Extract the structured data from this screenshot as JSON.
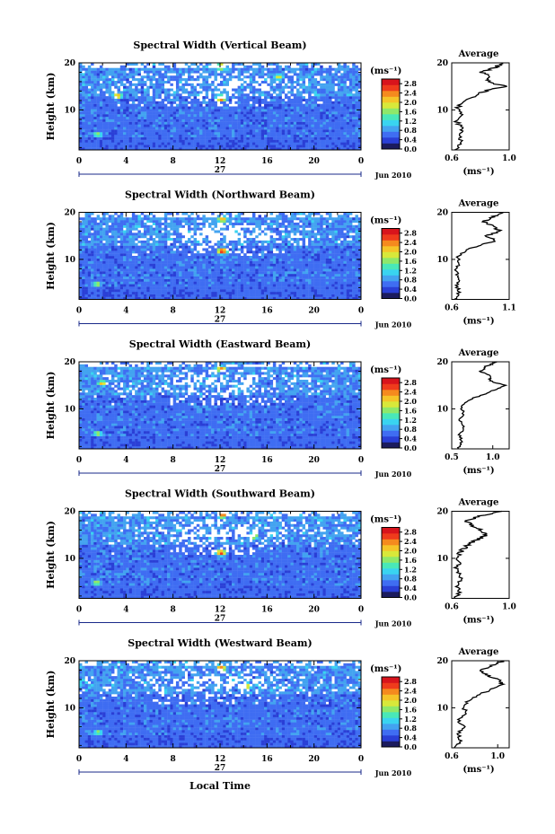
{
  "panels": [
    {
      "title": "Spectral Width (Vertical Beam)",
      "average_title": "Average",
      "ylabel": "Height (km)",
      "y_ticks": [
        "20",
        "10"
      ],
      "x_ticks": [
        "0",
        "4",
        "8",
        "12",
        "16",
        "20",
        "0"
      ],
      "day_label": "27",
      "month_label": "Jun 2010",
      "colorbar_unit": "(ms⁻¹)",
      "colorbar_ticks": [
        "2.8",
        "2.4",
        "2.0",
        "1.6",
        "1.2",
        "0.8",
        "0.4",
        "0.0"
      ],
      "avg_x_ticks": [
        "0.6",
        "1.0"
      ],
      "avg_xlabel": "(ms⁻¹)",
      "avg_y_ticks": [
        "20",
        "10"
      ]
    },
    {
      "title": "Spectral Width (Northward Beam)",
      "average_title": "Average",
      "ylabel": "Height (km)",
      "y_ticks": [
        "20",
        "10"
      ],
      "x_ticks": [
        "0",
        "4",
        "8",
        "12",
        "16",
        "20",
        "0"
      ],
      "day_label": "27",
      "month_label": "Jun 2010",
      "colorbar_unit": "(ms⁻¹)",
      "colorbar_ticks": [
        "2.8",
        "2.4",
        "2.0",
        "1.6",
        "1.2",
        "0.8",
        "0.4",
        "0.0"
      ],
      "avg_x_ticks": [
        "0.6",
        "1.1"
      ],
      "avg_xlabel": "(ms⁻¹)",
      "avg_y_ticks": [
        "20",
        "10"
      ]
    },
    {
      "title": "Spectral Width (Eastward Beam)",
      "average_title": "Average",
      "ylabel": "Height (km)",
      "y_ticks": [
        "20",
        "10"
      ],
      "x_ticks": [
        "0",
        "4",
        "8",
        "12",
        "16",
        "20",
        "0"
      ],
      "day_label": "27",
      "month_label": "Jun 2010",
      "colorbar_unit": "(ms⁻¹)",
      "colorbar_ticks": [
        "2.8",
        "2.4",
        "2.0",
        "1.6",
        "1.2",
        "0.8",
        "0.4",
        "0.0"
      ],
      "avg_x_ticks": [
        "0.5",
        "1.0"
      ],
      "avg_xlabel": "(ms⁻¹)",
      "avg_y_ticks": [
        "20",
        "10"
      ]
    },
    {
      "title": "Spectral Width (Southward Beam)",
      "average_title": "Average",
      "ylabel": "Height (km)",
      "y_ticks": [
        "20",
        "10"
      ],
      "x_ticks": [
        "0",
        "4",
        "8",
        "12",
        "16",
        "20",
        "0"
      ],
      "day_label": "27",
      "month_label": "Jun 2010",
      "colorbar_unit": "(ms⁻¹)",
      "colorbar_ticks": [
        "2.8",
        "2.4",
        "2.0",
        "1.6",
        "1.2",
        "0.8",
        "0.4",
        "0.0"
      ],
      "avg_x_ticks": [
        "0.6",
        "1.0"
      ],
      "avg_xlabel": "(ms⁻¹)",
      "avg_y_ticks": [
        "20",
        "10"
      ]
    },
    {
      "title": "Spectral Width (Westward Beam)",
      "average_title": "Average",
      "ylabel": "Height (km)",
      "y_ticks": [
        "20",
        "10"
      ],
      "x_ticks": [
        "0",
        "4",
        "8",
        "12",
        "16",
        "20",
        "0"
      ],
      "day_label": "27",
      "month_label": "Jun 2010",
      "colorbar_unit": "(ms⁻¹)",
      "colorbar_ticks": [
        "2.8",
        "2.4",
        "2.0",
        "1.6",
        "1.2",
        "0.8",
        "0.4",
        "0.0"
      ],
      "avg_x_ticks": [
        "0.6",
        "1.0"
      ],
      "avg_xlabel": "(ms⁻¹)",
      "avg_y_ticks": [
        "20",
        "10"
      ]
    }
  ],
  "xlabel_bottom": "Local Time",
  "colormap": [
    "#1b1b5e",
    "#2a3fd6",
    "#3f6df2",
    "#43a3f0",
    "#39d4f0",
    "#49e8b8",
    "#8ee86a",
    "#d8e83a",
    "#f5c428",
    "#f58a1e",
    "#ef3b1c",
    "#d8141c"
  ],
  "chart_data": [
    {
      "type": "heatmap",
      "title": "Spectral Width (Vertical Beam)",
      "ylabel": "Height (km)",
      "xlabel": "Local Time",
      "xlim": [
        0,
        24
      ],
      "ylim": [
        1.5,
        20
      ],
      "clim": [
        0.0,
        3.0
      ],
      "colorbar_unit": "(ms⁻¹)",
      "hotspots": [
        {
          "x": 12.1,
          "y": 19.2,
          "value": 2.6
        },
        {
          "x": 12.1,
          "y": 12.5,
          "value": 2.8
        },
        {
          "x": 3.3,
          "y": 13.0,
          "value": 2.2
        },
        {
          "x": 1.6,
          "y": 4.8,
          "value": 1.6
        },
        {
          "x": 17.0,
          "y": 17.0,
          "value": 1.8
        }
      ],
      "average_profile": {
        "xlim": [
          0.6,
          1.0
        ],
        "height": [
          1.5,
          3,
          4.5,
          6,
          7.5,
          9,
          10.5,
          12,
          13,
          14,
          15,
          16,
          17,
          18,
          19,
          20
        ],
        "value": [
          0.62,
          0.67,
          0.65,
          0.68,
          0.63,
          0.66,
          0.64,
          0.7,
          0.76,
          0.83,
          0.97,
          0.84,
          0.88,
          0.81,
          0.9,
          0.95
        ]
      }
    },
    {
      "type": "heatmap",
      "title": "Spectral Width (Northward Beam)",
      "ylabel": "Height (km)",
      "xlabel": "Local Time",
      "xlim": [
        0,
        24
      ],
      "ylim": [
        1.5,
        20
      ],
      "clim": [
        0.0,
        3.0
      ],
      "colorbar_unit": "(ms⁻¹)",
      "hotspots": [
        {
          "x": 12.2,
          "y": 11.8,
          "value": 2.8
        },
        {
          "x": 12.2,
          "y": 18.5,
          "value": 2.2
        },
        {
          "x": 1.5,
          "y": 4.8,
          "value": 1.7
        }
      ],
      "average_profile": {
        "xlim": [
          0.6,
          1.1
        ],
        "height": [
          1.5,
          3,
          4.5,
          6,
          7.5,
          9,
          10.5,
          12,
          13,
          14,
          15,
          16,
          17,
          18,
          19,
          20
        ],
        "value": [
          0.62,
          0.66,
          0.64,
          0.67,
          0.63,
          0.66,
          0.65,
          0.72,
          0.85,
          0.98,
          0.9,
          1.02,
          0.96,
          0.88,
          0.95,
          1.05
        ]
      }
    },
    {
      "type": "heatmap",
      "title": "Spectral Width (Eastward Beam)",
      "ylabel": "Height (km)",
      "xlabel": "Local Time",
      "xlim": [
        0,
        24
      ],
      "ylim": [
        1.5,
        20
      ],
      "clim": [
        0.0,
        3.0
      ],
      "colorbar_unit": "(ms⁻¹)",
      "hotspots": [
        {
          "x": 12.1,
          "y": 18.5,
          "value": 2.4
        },
        {
          "x": 2.0,
          "y": 15.5,
          "value": 2.0
        },
        {
          "x": 1.6,
          "y": 4.8,
          "value": 1.6
        }
      ],
      "average_profile": {
        "xlim": [
          0.5,
          1.2
        ],
        "height": [
          1.5,
          3,
          4.5,
          6,
          7.5,
          9,
          10.5,
          12,
          13,
          14,
          15,
          16,
          17,
          18,
          19,
          20
        ],
        "value": [
          0.58,
          0.63,
          0.6,
          0.65,
          0.6,
          0.64,
          0.62,
          0.72,
          0.88,
          1.02,
          1.15,
          0.95,
          0.98,
          0.85,
          0.92,
          1.05
        ]
      }
    },
    {
      "type": "heatmap",
      "title": "Spectral Width (Southward Beam)",
      "ylabel": "Height (km)",
      "xlabel": "Local Time",
      "xlim": [
        0,
        24
      ],
      "ylim": [
        1.5,
        20
      ],
      "clim": [
        0.0,
        3.0
      ],
      "colorbar_unit": "(ms⁻¹)",
      "hotspots": [
        {
          "x": 12.1,
          "y": 11.2,
          "value": 2.6
        },
        {
          "x": 12.2,
          "y": 19.2,
          "value": 2.4
        },
        {
          "x": 14.8,
          "y": 14.8,
          "value": 2.2
        },
        {
          "x": 1.5,
          "y": 4.8,
          "value": 1.6
        }
      ],
      "average_profile": {
        "xlim": [
          0.6,
          1.0
        ],
        "height": [
          1.5,
          3,
          4.5,
          6,
          7.5,
          9,
          10.5,
          12,
          13,
          14,
          15,
          16,
          17,
          18,
          19,
          20
        ],
        "value": [
          0.62,
          0.66,
          0.64,
          0.67,
          0.63,
          0.65,
          0.64,
          0.68,
          0.72,
          0.78,
          0.84,
          0.8,
          0.74,
          0.7,
          0.8,
          0.95
        ]
      }
    },
    {
      "type": "heatmap",
      "title": "Spectral Width (Westward Beam)",
      "ylabel": "Height (km)",
      "xlabel": "Local Time",
      "xlim": [
        0,
        24
      ],
      "ylim": [
        1.5,
        20
      ],
      "clim": [
        0.0,
        3.0
      ],
      "colorbar_unit": "(ms⁻¹)",
      "hotspots": [
        {
          "x": 12.1,
          "y": 18.5,
          "value": 2.4
        },
        {
          "x": 14.3,
          "y": 14.6,
          "value": 2.0
        },
        {
          "x": 1.6,
          "y": 4.8,
          "value": 1.6
        }
      ],
      "average_profile": {
        "xlim": [
          0.6,
          1.1
        ],
        "height": [
          1.5,
          3,
          4.5,
          6,
          7.5,
          9,
          10.5,
          12,
          13,
          14,
          15,
          16,
          17,
          18,
          19,
          20
        ],
        "value": [
          0.62,
          0.68,
          0.65,
          0.7,
          0.66,
          0.72,
          0.7,
          0.78,
          0.86,
          0.95,
          1.05,
          1.0,
          0.9,
          0.85,
          0.95,
          1.05
        ]
      }
    }
  ]
}
